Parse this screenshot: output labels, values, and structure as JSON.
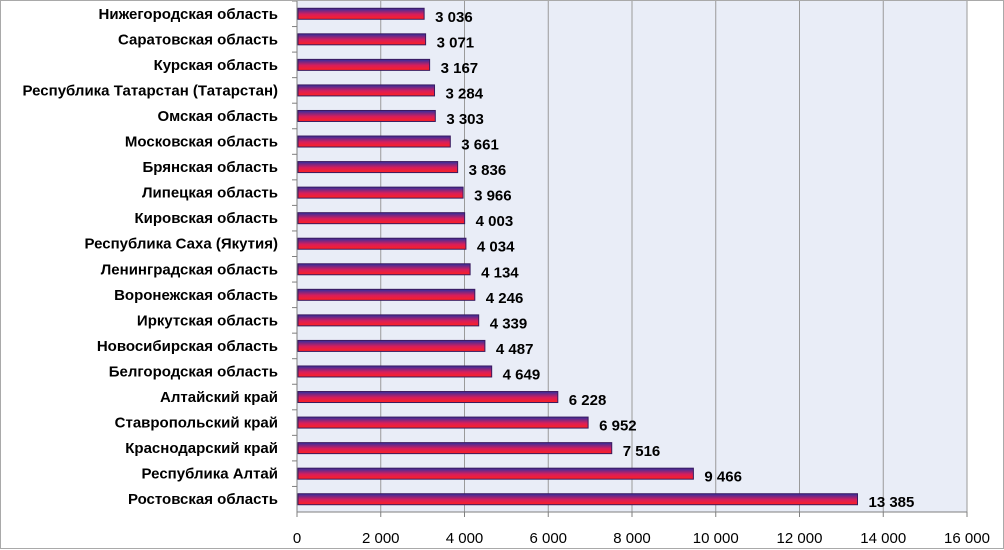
{
  "chart_data": {
    "type": "bar",
    "orientation": "horizontal",
    "title": "",
    "xlabel": "",
    "ylabel": "",
    "xlim": [
      0,
      16000
    ],
    "x_ticks": [
      {
        "value": 0,
        "label": "0"
      },
      {
        "value": 2000,
        "label": "2 000"
      },
      {
        "value": 4000,
        "label": "4 000"
      },
      {
        "value": 6000,
        "label": "6 000"
      },
      {
        "value": 8000,
        "label": "8 000"
      },
      {
        "value": 10000,
        "label": "10 000"
      },
      {
        "value": 12000,
        "label": "12 000"
      },
      {
        "value": 14000,
        "label": "14 000"
      },
      {
        "value": 16000,
        "label": "16 000"
      }
    ],
    "grid": true,
    "legend": "none",
    "categories": [
      "Нижегородская область",
      "Саратовская область",
      "Курская область",
      "Республика Татарстан (Татарстан)",
      "Омская область",
      "Московская область",
      "Брянская область",
      "Липецкая область",
      "Кировская область",
      "Республика Саха (Якутия)",
      "Ленинградская область",
      "Воронежская область",
      "Иркутская область",
      "Новосибирская область",
      "Белгородская область",
      "Алтайский край",
      "Ставропольский край",
      "Краснодарский край",
      "Республика Алтай",
      "Ростовская область"
    ],
    "values": [
      3036,
      3071,
      3167,
      3284,
      3303,
      3661,
      3836,
      3966,
      4003,
      4034,
      4134,
      4246,
      4339,
      4487,
      4649,
      6228,
      6952,
      7516,
      9466,
      13385
    ],
    "value_labels": [
      "3 036",
      "3 071",
      "3 167",
      "3 284",
      "3 303",
      "3 661",
      "3 836",
      "3 966",
      "4 003",
      "4 034",
      "4 134",
      "4 246",
      "4 339",
      "4 487",
      "4 649",
      "6 228",
      "6 952",
      "7 516",
      "9 466",
      "13 385"
    ],
    "colors": {
      "plot_background": "#e9edf7",
      "gridline": "#9a9a9a",
      "bar_top": "#2f2fa0",
      "bar_mid": "#d81e5b",
      "bar_bottom": "#ff2020",
      "bar_outline": "#3a1a5e"
    }
  }
}
